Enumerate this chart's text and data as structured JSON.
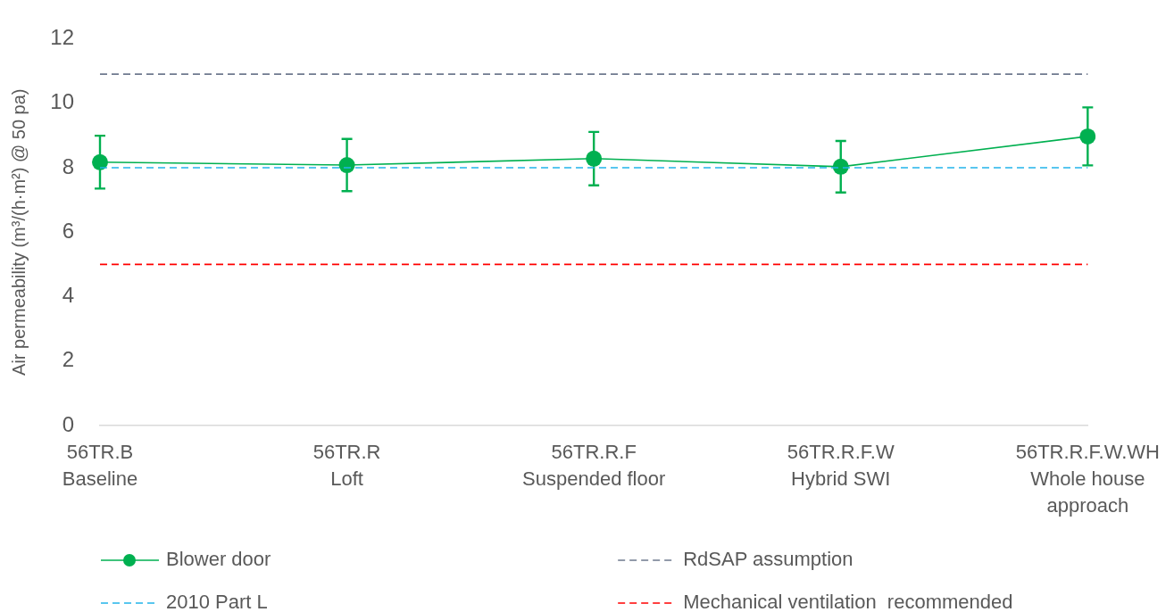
{
  "chart_data": {
    "type": "line",
    "ylabel": "Air permeability (m³/(h·m²) @ 50 pa)",
    "categories": [
      "56TR.B\nBaseline",
      "56TR.R\nLoft",
      "56TR.R.F\nSuspended floor",
      "56TR.R.F.W\nHybrid SWI",
      "56TR.R.F.W.WH\nWhole house approach"
    ],
    "ylim": [
      0,
      12
    ],
    "yticks": [
      0,
      2,
      4,
      6,
      8,
      10,
      12
    ],
    "legend": "bottom",
    "series": [
      {
        "name": "Blower door",
        "color": "#00b050",
        "marker": "circle",
        "line_style": "solid",
        "values": [
          8.17,
          8.08,
          8.28,
          8.03,
          8.97
        ],
        "errors": [
          0.82,
          0.81,
          0.83,
          0.8,
          0.9
        ]
      },
      {
        "name": "RdSAP assumption",
        "color": "#6f7a8f",
        "marker": "none",
        "line_style": "dashed",
        "values": [
          10.9,
          10.9,
          10.9,
          10.9,
          10.9
        ]
      },
      {
        "name": "2010 Part L",
        "color": "#22b4ea",
        "marker": "none",
        "line_style": "dashed",
        "values": [
          8,
          8,
          8,
          8,
          8
        ]
      },
      {
        "name": "Mechanical ventilation  recommended",
        "color": "#ff0000",
        "marker": "none",
        "line_style": "dashed",
        "values": [
          5,
          5,
          5,
          5,
          5
        ]
      }
    ]
  }
}
